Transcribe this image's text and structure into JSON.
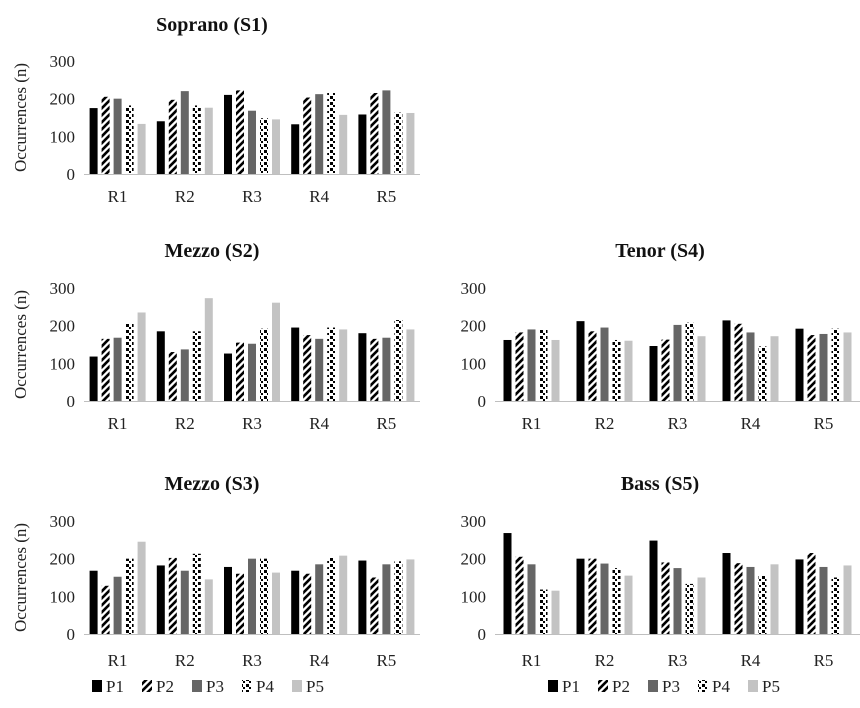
{
  "series_styles": [
    {
      "name": "P1",
      "pattern": "solid-black",
      "color": "#000000"
    },
    {
      "name": "P2",
      "pattern": "diagonal-stripes",
      "color": "#000000"
    },
    {
      "name": "P3",
      "pattern": "solid-darkgray",
      "color": "#666666"
    },
    {
      "name": "P4",
      "pattern": "dots",
      "color": "#000000"
    },
    {
      "name": "P5",
      "pattern": "solid-lightgray",
      "color": "#c3c3c3"
    }
  ],
  "chart_data": [
    {
      "type": "bar",
      "title": "Soprano (S1)",
      "ylabel": "Occurrences (n)",
      "ylim": [
        0,
        300
      ],
      "yticks": [
        0,
        100,
        200,
        300
      ],
      "categories": [
        "R1",
        "R2",
        "R3",
        "R4",
        "R5"
      ],
      "series": [
        {
          "name": "P1",
          "values": [
            175,
            140,
            210,
            132,
            158
          ]
        },
        {
          "name": "P2",
          "values": [
            205,
            197,
            222,
            203,
            215
          ]
        },
        {
          "name": "P3",
          "values": [
            200,
            220,
            168,
            212,
            222
          ]
        },
        {
          "name": "P4",
          "values": [
            182,
            182,
            148,
            215,
            163
          ]
        },
        {
          "name": "P5",
          "values": [
            133,
            176,
            145,
            157,
            162
          ]
        }
      ]
    },
    {
      "type": "bar",
      "title": "Mezzo (S2)",
      "ylabel": "Occurrences (n)",
      "ylim": [
        0,
        300
      ],
      "yticks": [
        0,
        100,
        200,
        300
      ],
      "categories": [
        "R1",
        "R2",
        "R3",
        "R4",
        "R5"
      ],
      "series": [
        {
          "name": "P1",
          "values": [
            118,
            185,
            126,
            195,
            180
          ]
        },
        {
          "name": "P2",
          "values": [
            165,
            130,
            155,
            175,
            165
          ]
        },
        {
          "name": "P3",
          "values": [
            168,
            137,
            152,
            165,
            168
          ]
        },
        {
          "name": "P4",
          "values": [
            205,
            185,
            192,
            195,
            215
          ]
        },
        {
          "name": "P5",
          "values": [
            235,
            273,
            261,
            190,
            190
          ]
        }
      ]
    },
    {
      "type": "bar",
      "title": "Tenor (S4)",
      "ylabel": "",
      "ylim": [
        0,
        300
      ],
      "yticks": [
        0,
        100,
        200,
        300
      ],
      "categories": [
        "R1",
        "R2",
        "R3",
        "R4",
        "R5"
      ],
      "series": [
        {
          "name": "P1",
          "values": [
            162,
            212,
            146,
            214,
            192
          ]
        },
        {
          "name": "P2",
          "values": [
            182,
            185,
            163,
            205,
            175
          ]
        },
        {
          "name": "P3",
          "values": [
            190,
            195,
            202,
            182,
            178
          ]
        },
        {
          "name": "P4",
          "values": [
            190,
            162,
            208,
            145,
            192
          ]
        },
        {
          "name": "P5",
          "values": [
            162,
            160,
            172,
            172,
            182
          ]
        }
      ]
    },
    {
      "type": "bar",
      "title": "Mezzo (S3)",
      "ylabel": "Occurrences (n)",
      "ylim": [
        0,
        300
      ],
      "yticks": [
        0,
        100,
        200,
        300
      ],
      "categories": [
        "R1",
        "R2",
        "R3",
        "R4",
        "R5"
      ],
      "series": [
        {
          "name": "P1",
          "values": [
            168,
            182,
            178,
            168,
            195
          ]
        },
        {
          "name": "P2",
          "values": [
            128,
            202,
            160,
            160,
            150
          ]
        },
        {
          "name": "P3",
          "values": [
            152,
            168,
            200,
            185,
            185
          ]
        },
        {
          "name": "P4",
          "values": [
            200,
            213,
            200,
            202,
            193
          ]
        },
        {
          "name": "P5",
          "values": [
            245,
            145,
            163,
            208,
            198
          ]
        }
      ]
    },
    {
      "type": "bar",
      "title": "Bass (S5)",
      "ylabel": "",
      "ylim": [
        0,
        300
      ],
      "yticks": [
        0,
        100,
        200,
        300
      ],
      "categories": [
        "R1",
        "R2",
        "R3",
        "R4",
        "R5"
      ],
      "series": [
        {
          "name": "P1",
          "values": [
            268,
            200,
            248,
            215,
            198
          ]
        },
        {
          "name": "P2",
          "values": [
            205,
            200,
            190,
            188,
            215
          ]
        },
        {
          "name": "P3",
          "values": [
            185,
            187,
            175,
            178,
            178
          ]
        },
        {
          "name": "P4",
          "values": [
            118,
            175,
            133,
            155,
            150
          ]
        },
        {
          "name": "P5",
          "values": [
            115,
            155,
            150,
            185,
            182
          ]
        }
      ]
    }
  ],
  "legends": [
    {
      "items": [
        "P1",
        "P2",
        "P3",
        "P4",
        "P5"
      ]
    },
    {
      "items": [
        "P1",
        "P2",
        "P3",
        "P4",
        "P5"
      ]
    }
  ]
}
